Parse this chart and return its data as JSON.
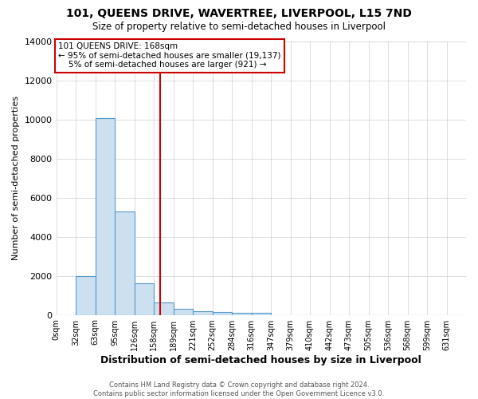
{
  "title": "101, QUEENS DRIVE, WAVERTREE, LIVERPOOL, L15 7ND",
  "subtitle": "Size of property relative to semi-detached houses in Liverpool",
  "xlabel": "Distribution of semi-detached houses by size in Liverpool",
  "ylabel": "Number of semi-detached properties",
  "bar_labels": [
    "0sqm",
    "32sqm",
    "63sqm",
    "95sqm",
    "126sqm",
    "158sqm",
    "189sqm",
    "221sqm",
    "252sqm",
    "284sqm",
    "316sqm",
    "347sqm",
    "379sqm",
    "410sqm",
    "442sqm",
    "473sqm",
    "505sqm",
    "536sqm",
    "568sqm",
    "599sqm",
    "631sqm"
  ],
  "bar_values": [
    0,
    2000,
    10050,
    5300,
    1600,
    650,
    290,
    190,
    145,
    100,
    100,
    0,
    0,
    0,
    0,
    0,
    0,
    0,
    0,
    0,
    0
  ],
  "bar_color": "#cce0f0",
  "bar_edge_color": "#5599cc",
  "red_line_x": 5.32,
  "annotation_text": "101 QUEENS DRIVE: 168sqm\n← 95% of semi-detached houses are smaller (19,137)\n    5% of semi-detached houses are larger (921) →",
  "annotation_box_color": "#ffffff",
  "annotation_box_edge_color": "#cc0000",
  "red_line_color": "#cc0000",
  "ylim": [
    0,
    14000
  ],
  "yticks": [
    0,
    2000,
    4000,
    6000,
    8000,
    10000,
    12000,
    14000
  ],
  "footnote": "Contains HM Land Registry data © Crown copyright and database right 2024.\nContains public sector information licensed under the Open Government Licence v3.0.",
  "background_color": "#ffffff",
  "grid_color": "#d0d0d0"
}
